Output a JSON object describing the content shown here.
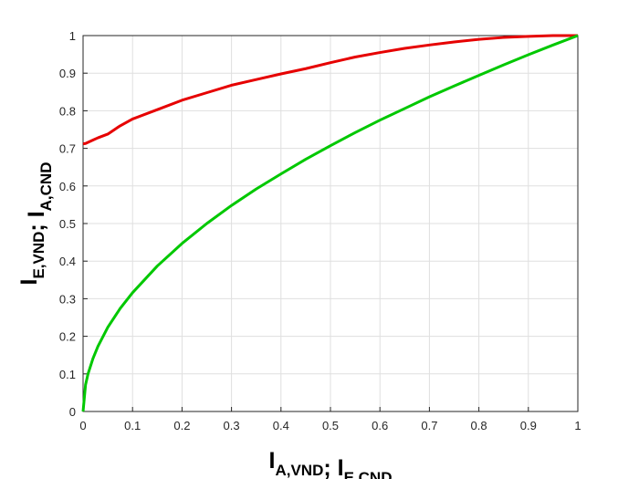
{
  "chart_data": {
    "type": "line",
    "xlabel": [
      {
        "base": "I",
        "sub": "A,VND"
      },
      {
        "base": "; I",
        "sub": "E,CND"
      }
    ],
    "ylabel": [
      {
        "base": "I",
        "sub": "E,VND"
      },
      {
        "base": "; I",
        "sub": "A,CND"
      }
    ],
    "x": [
      0,
      0.005,
      0.01,
      0.02,
      0.03,
      0.05,
      0.075,
      0.1,
      0.15,
      0.2,
      0.25,
      0.3,
      0.35,
      0.4,
      0.45,
      0.5,
      0.55,
      0.6,
      0.65,
      0.7,
      0.75,
      0.8,
      0.85,
      0.9,
      0.95,
      1
    ],
    "series": [
      {
        "color": "#e60000",
        "values": [
          0.712,
          0.713,
          0.716,
          0.722,
          0.728,
          0.738,
          0.76,
          0.778,
          0.803,
          0.828,
          0.848,
          0.868,
          0.883,
          0.898,
          0.912,
          0.928,
          0.943,
          0.955,
          0.966,
          0.975,
          0.983,
          0.99,
          0.995,
          0.998,
          1.0,
          1.0
        ]
      },
      {
        "color": "#00c800",
        "values": [
          0,
          0.071,
          0.1,
          0.141,
          0.173,
          0.224,
          0.274,
          0.316,
          0.387,
          0.447,
          0.5,
          0.548,
          0.592,
          0.632,
          0.671,
          0.707,
          0.742,
          0.775,
          0.806,
          0.837,
          0.866,
          0.894,
          0.922,
          0.949,
          0.975,
          1
        ]
      }
    ],
    "xlim": [
      0,
      1
    ],
    "ylim": [
      0,
      1
    ],
    "xticks": [
      0,
      0.1,
      0.2,
      0.3,
      0.4,
      0.5,
      0.6,
      0.7,
      0.8,
      0.9,
      1
    ],
    "yticks": [
      0,
      0.1,
      0.2,
      0.3,
      0.4,
      0.5,
      0.6,
      0.7,
      0.8,
      0.9,
      1
    ],
    "grid": true
  }
}
